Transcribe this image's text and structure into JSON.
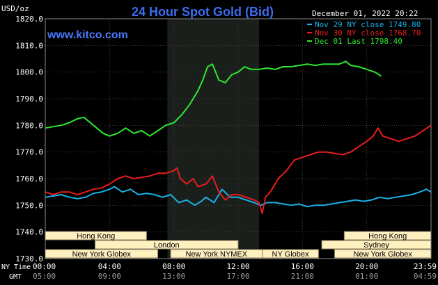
{
  "header": {
    "title": "24 Hour Spot Gold (Bid)",
    "unit": "USD/oz",
    "timestamp": "December 01, 2022 20:22",
    "website": "www.kitco.com"
  },
  "legend": [
    {
      "label": "Nov 29 NY close 1749.80",
      "color": "#1ab2e8"
    },
    {
      "label": "Nov 30 NY close 1768.70",
      "color": "#e81c1c"
    },
    {
      "label": "Dec 01 Last 1798.40",
      "color": "#2ee82e"
    }
  ],
  "time_axis": {
    "ny_label": "NY Time",
    "gmt_label": "GMT",
    "ny_ticks": [
      "00:00",
      "04:00",
      "08:00",
      "12:00",
      "16:00",
      "20:00",
      "23:59"
    ],
    "gmt_ticks": [
      "05:00",
      "09:00",
      "13:00",
      "17:00",
      "21:00",
      "01:00",
      "04:59"
    ]
  },
  "sessions": {
    "top": [
      {
        "label": "Hong Kong",
        "start": 0,
        "end": 6.3
      },
      {
        "label": "Hong Kong",
        "start": 18.6,
        "end": 24
      }
    ],
    "middle": [
      {
        "label": "London",
        "start": 3.1,
        "end": 12
      },
      {
        "label": "Sydney",
        "start": 17.2,
        "end": 24
      }
    ],
    "bottom": [
      {
        "label": "New York Globex",
        "start": 0,
        "end": 7
      },
      {
        "label": "New York NYMEX",
        "start": 7.8,
        "end": 13.5
      },
      {
        "label": "NY Globex",
        "start": 13.5,
        "end": 17
      },
      {
        "label": "New York Globex",
        "start": 18,
        "end": 24
      }
    ]
  },
  "chart_data": {
    "type": "line",
    "title": "24 Hour Spot Gold (Bid)",
    "ylabel": "USD/oz",
    "xlim": [
      0,
      24
    ],
    "ylim": [
      1730,
      1820
    ],
    "yticks": [
      1730.0,
      1740.0,
      1750.0,
      1760.0,
      1770.0,
      1780.0,
      1790.0,
      1800.0,
      1810.0,
      1820.0
    ],
    "highlight_x": [
      7.6,
      13.3
    ],
    "series": [
      {
        "name": "Nov 29 NY close 1749.80",
        "color": "#1ab2e8",
        "points": [
          [
            0,
            1753
          ],
          [
            0.5,
            1753.5
          ],
          [
            1,
            1754
          ],
          [
            1.5,
            1753
          ],
          [
            2,
            1752.5
          ],
          [
            2.5,
            1753
          ],
          [
            3,
            1754.5
          ],
          [
            3.5,
            1755
          ],
          [
            4,
            1756
          ],
          [
            4.3,
            1757
          ],
          [
            4.8,
            1755
          ],
          [
            5.3,
            1756
          ],
          [
            5.8,
            1754
          ],
          [
            6.3,
            1754.5
          ],
          [
            6.8,
            1754
          ],
          [
            7.3,
            1753
          ],
          [
            7.8,
            1754
          ],
          [
            8.3,
            1751
          ],
          [
            8.8,
            1752
          ],
          [
            9.3,
            1750
          ],
          [
            9.7,
            1751.5
          ],
          [
            10,
            1753
          ],
          [
            10.5,
            1751
          ],
          [
            11,
            1756
          ],
          [
            11.5,
            1753
          ],
          [
            12,
            1753
          ],
          [
            12.5,
            1752
          ],
          [
            13,
            1751
          ],
          [
            13.4,
            1750
          ],
          [
            13.8,
            1751
          ],
          [
            14.3,
            1751
          ],
          [
            14.8,
            1750.5
          ],
          [
            15.3,
            1750
          ],
          [
            15.8,
            1750.5
          ],
          [
            16.3,
            1749.5
          ],
          [
            16.8,
            1750
          ],
          [
            17.3,
            1750
          ],
          [
            17.8,
            1750.5
          ],
          [
            18.3,
            1751
          ],
          [
            18.8,
            1751.5
          ],
          [
            19.3,
            1752
          ],
          [
            19.8,
            1751.5
          ],
          [
            20.3,
            1752
          ],
          [
            20.8,
            1753
          ],
          [
            21.3,
            1752.5
          ],
          [
            21.8,
            1753
          ],
          [
            22.3,
            1753.5
          ],
          [
            22.8,
            1754
          ],
          [
            23.3,
            1755
          ],
          [
            23.7,
            1756
          ],
          [
            24,
            1755
          ]
        ]
      },
      {
        "name": "Nov 30 NY close 1768.70",
        "color": "#e81c1c",
        "points": [
          [
            0,
            1755
          ],
          [
            0.5,
            1754
          ],
          [
            1,
            1755
          ],
          [
            1.5,
            1755
          ],
          [
            2,
            1754
          ],
          [
            2.5,
            1755
          ],
          [
            3,
            1756
          ],
          [
            3.5,
            1756.5
          ],
          [
            4,
            1758
          ],
          [
            4.5,
            1760
          ],
          [
            5,
            1761
          ],
          [
            5.5,
            1760
          ],
          [
            6,
            1760.5
          ],
          [
            6.5,
            1761
          ],
          [
            7,
            1762
          ],
          [
            7.5,
            1762
          ],
          [
            8,
            1763
          ],
          [
            8.2,
            1764
          ],
          [
            8.4,
            1760
          ],
          [
            8.8,
            1758
          ],
          [
            9.2,
            1760
          ],
          [
            9.5,
            1757
          ],
          [
            10,
            1758
          ],
          [
            10.4,
            1761
          ],
          [
            10.8,
            1755
          ],
          [
            11.2,
            1752
          ],
          [
            11.6,
            1754
          ],
          [
            12,
            1754
          ],
          [
            12.5,
            1753
          ],
          [
            13,
            1752
          ],
          [
            13.3,
            1751
          ],
          [
            13.5,
            1747
          ],
          [
            13.7,
            1753
          ],
          [
            14,
            1755
          ],
          [
            14.5,
            1760
          ],
          [
            15,
            1763
          ],
          [
            15.5,
            1767
          ],
          [
            16,
            1768
          ],
          [
            16.5,
            1769
          ],
          [
            17,
            1770
          ],
          [
            17.5,
            1770
          ],
          [
            18,
            1769.5
          ],
          [
            18.5,
            1769
          ],
          [
            19,
            1770
          ],
          [
            19.5,
            1772
          ],
          [
            20,
            1774
          ],
          [
            20.4,
            1776
          ],
          [
            20.7,
            1779
          ],
          [
            21,
            1776
          ],
          [
            21.5,
            1775
          ],
          [
            22,
            1774
          ],
          [
            22.5,
            1775
          ],
          [
            23,
            1776
          ],
          [
            23.5,
            1778
          ],
          [
            24,
            1780
          ]
        ]
      },
      {
        "name": "Dec 01 Last 1798.40",
        "color": "#2ee82e",
        "points": [
          [
            0,
            1779
          ],
          [
            0.5,
            1779.5
          ],
          [
            1,
            1780
          ],
          [
            1.5,
            1781
          ],
          [
            2,
            1782.5
          ],
          [
            2.4,
            1783
          ],
          [
            2.8,
            1781
          ],
          [
            3.2,
            1779
          ],
          [
            3.6,
            1777
          ],
          [
            4,
            1776
          ],
          [
            4.5,
            1777
          ],
          [
            5,
            1779
          ],
          [
            5.5,
            1777
          ],
          [
            6,
            1778
          ],
          [
            6.5,
            1776
          ],
          [
            7,
            1778
          ],
          [
            7.5,
            1780
          ],
          [
            8,
            1781
          ],
          [
            8.5,
            1784
          ],
          [
            9,
            1788
          ],
          [
            9.5,
            1793
          ],
          [
            9.8,
            1797
          ],
          [
            10.1,
            1802
          ],
          [
            10.4,
            1803
          ],
          [
            10.8,
            1797
          ],
          [
            11.2,
            1796
          ],
          [
            11.6,
            1799
          ],
          [
            12,
            1800
          ],
          [
            12.4,
            1802
          ],
          [
            12.8,
            1801
          ],
          [
            13.3,
            1801
          ],
          [
            13.8,
            1801.5
          ],
          [
            14.3,
            1801
          ],
          [
            14.8,
            1802
          ],
          [
            15.3,
            1802
          ],
          [
            15.8,
            1802.5
          ],
          [
            16.3,
            1803
          ],
          [
            16.8,
            1802.5
          ],
          [
            17.3,
            1803
          ],
          [
            17.8,
            1803
          ],
          [
            18.3,
            1803
          ],
          [
            18.7,
            1804
          ],
          [
            19,
            1802.5
          ],
          [
            19.5,
            1802
          ],
          [
            20,
            1801
          ],
          [
            20.5,
            1800
          ],
          [
            20.9,
            1798.5
          ]
        ]
      }
    ]
  }
}
